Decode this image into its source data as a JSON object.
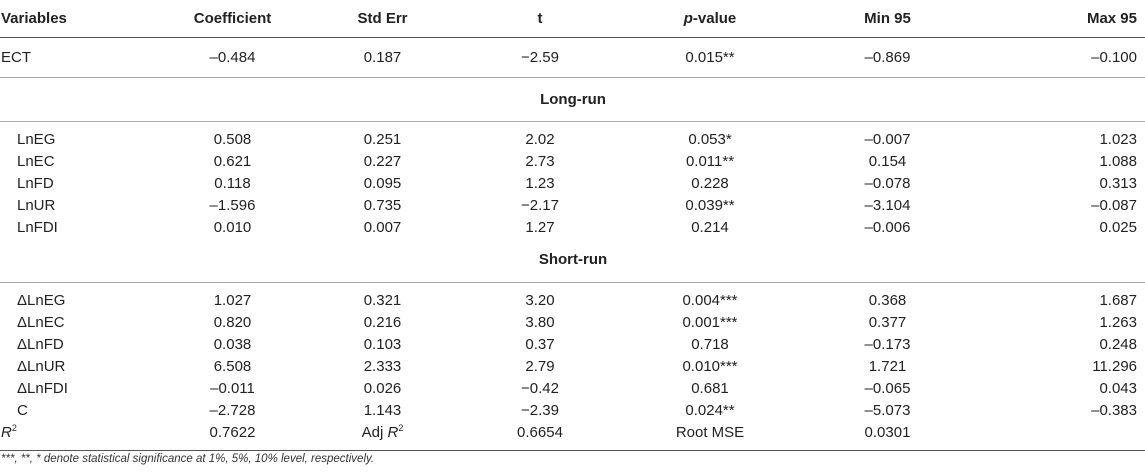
{
  "headers": {
    "variables": "Variables",
    "coefficient": "Coefficient",
    "std_err": "Std Err",
    "t": "t",
    "p_value_prefix": "p",
    "p_value_suffix": "-value",
    "min95": "Min 95",
    "max95": "Max 95"
  },
  "ect": [
    "ECT",
    "–0.484",
    "0.187",
    "−2.59",
    "0.015**",
    "–0.869",
    "–0.100"
  ],
  "long_run": {
    "title": "Long-run",
    "rows": [
      [
        "LnEG",
        "0.508",
        "0.251",
        "2.02",
        "0.053*",
        "–0.007",
        "1.023"
      ],
      [
        "LnEC",
        "0.621",
        "0.227",
        "2.73",
        "0.011**",
        "0.154",
        "1.088"
      ],
      [
        "LnFD",
        "0.118",
        "0.095",
        "1.23",
        "0.228",
        "–0.078",
        "0.313"
      ],
      [
        "LnUR",
        "–1.596",
        "0.735",
        "−2.17",
        "0.039**",
        "–3.104",
        "–0.087"
      ],
      [
        "LnFDI",
        "0.010",
        "0.007",
        "1.27",
        "0.214",
        "–0.006",
        "0.025"
      ]
    ]
  },
  "short_run": {
    "title": "Short-run",
    "rows": [
      [
        "ΔLnEG",
        "1.027",
        "0.321",
        "3.20",
        "0.004***",
        "0.368",
        "1.687"
      ],
      [
        "ΔLnEC",
        "0.820",
        "0.216",
        "3.80",
        "0.001***",
        "0.377",
        "1.263"
      ],
      [
        "ΔLnFD",
        "0.038",
        "0.103",
        "0.37",
        "0.718",
        "–0.173",
        "0.248"
      ],
      [
        "ΔLnUR",
        "6.508",
        "2.333",
        "2.79",
        "0.010***",
        "1.721",
        "11.296"
      ],
      [
        "ΔLnFDI",
        "–0.011",
        "0.026",
        "−0.42",
        "0.681",
        "–0.065",
        "0.043"
      ],
      [
        "C",
        "–2.728",
        "1.143",
        "−2.39",
        "0.024**",
        "–5.073",
        "–0.383"
      ]
    ]
  },
  "fit": {
    "r2_base": "R",
    "r2_exp": "2",
    "r2_value": "0.7622",
    "adj_prefix": "Adj ",
    "adj_base": "R",
    "adj_exp": "2",
    "adj_value": "0.6654",
    "rmse_label": "Root MSE",
    "rmse_value": "0.0301"
  },
  "note": "***, **, * denote statistical significance at 1%, 5%, 10% level, respectively."
}
